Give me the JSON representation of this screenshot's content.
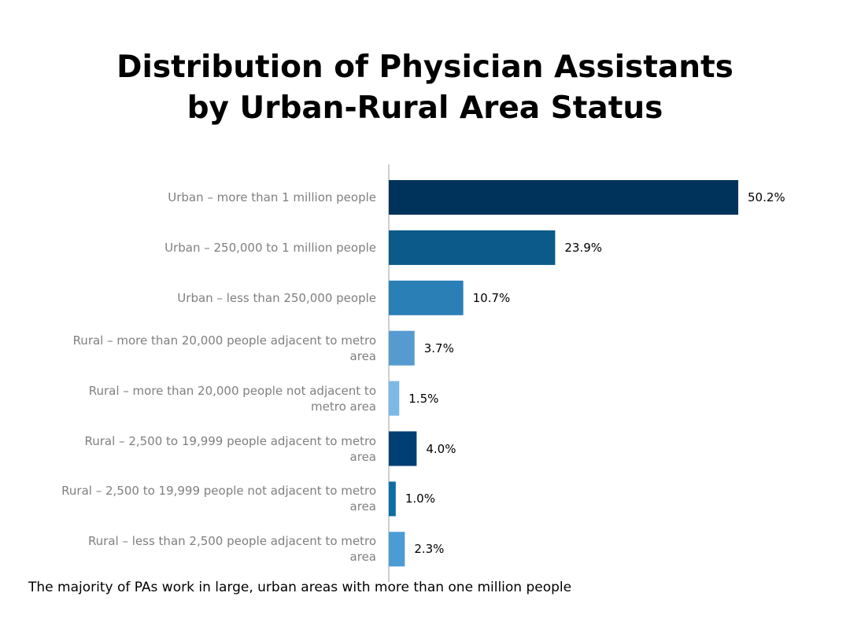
{
  "chart_data": {
    "type": "bar",
    "orientation": "horizontal",
    "title": "Distribution of Physician Assistants by Urban-Rural Area Status",
    "annotation": "The majority of PAs work in large, urban areas with more than one million people",
    "categories": [
      "Urban – more than 1 million people",
      "Urban – 250,000 to 1 million people",
      "Urban – less than 250,000 people",
      "Rural – more than 20,000 people adjacent to metro area",
      "Rural – more than 20,000 people not adjacent to metro area",
      "Rural – 2,500 to 19,999 people adjacent to metro area",
      "Rural – 2,500 to 19,999 people not adjacent to metro area",
      "Rural – less than 2,500 people adjacent to metro area"
    ],
    "values": [
      50.2,
      23.9,
      10.7,
      3.7,
      1.5,
      4.0,
      1.0,
      2.3
    ],
    "value_labels": [
      "50.2%",
      "23.9%",
      "10.7%",
      "3.7%",
      "1.5%",
      "4.0%",
      "1.0%",
      "2.3%"
    ],
    "colors": [
      "#00335c",
      "#0b5a8a",
      "#2a7fb6",
      "#559bd0",
      "#7db9e6",
      "#003f73",
      "#0d6ea6",
      "#4b9cd5"
    ]
  }
}
